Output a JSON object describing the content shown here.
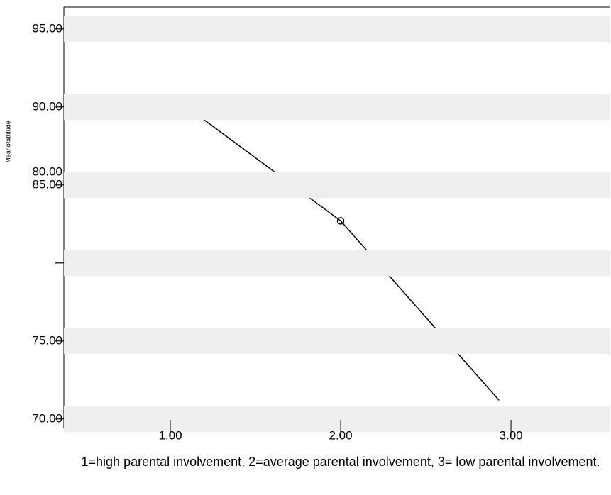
{
  "chart_data": {
    "type": "line",
    "x_label": "1=high parental involvement, 2=average parental involvement, 3= low parental involvement.",
    "y_label": "Meanofattitude",
    "xlim": [
      0.375,
      3.583
    ],
    "xticks": [
      {
        "value": 1,
        "label": "1.00"
      },
      {
        "value": 2,
        "label": "2.00"
      },
      {
        "value": 3,
        "label": "3.00"
      }
    ],
    "ylim": [
      69.4,
      96.4
    ],
    "yticks": [
      {
        "value": 95,
        "label": "95.00"
      },
      {
        "value": 90,
        "label": "90.00"
      },
      {
        "value": 85,
        "label": "85.00"
      },
      {
        "value": 80,
        "label": "80.00"
      },
      {
        "value": 75,
        "label": "75.00"
      },
      {
        "value": 70,
        "label": "70.00"
      }
    ],
    "grid": "bands",
    "series": [
      {
        "x": [
          1.17,
          2.0,
          2.93
        ],
        "values": [
          89.4,
          82.7,
          71.2
        ],
        "color": "#000000"
      }
    ],
    "points": {
      "x": [
        2.0
      ],
      "values": [
        82.7
      ],
      "color": "#000000"
    }
  }
}
